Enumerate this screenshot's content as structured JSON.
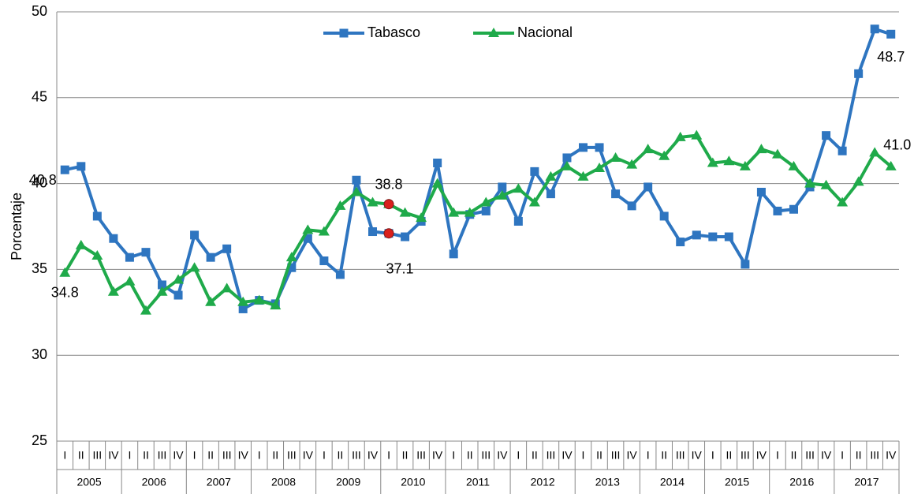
{
  "chart_data": {
    "type": "line",
    "y_label": "Porcentaje",
    "categories": [
      "I",
      "II",
      "III",
      "IV",
      "I",
      "II",
      "III",
      "IV",
      "I",
      "II",
      "III",
      "IV",
      "I",
      "II",
      "III",
      "IV",
      "I",
      "II",
      "III",
      "IV",
      "I",
      "II",
      "III",
      "IV",
      "I",
      "II",
      "III",
      "IV",
      "I",
      "II",
      "III",
      "IV",
      "I",
      "II",
      "III",
      "IV",
      "I",
      "II",
      "III",
      "IV",
      "I",
      "II",
      "III",
      "IV",
      "I",
      "II",
      "III",
      "IV",
      "I",
      "II",
      "III",
      "IV"
    ],
    "category_groups": [
      "2005",
      "2006",
      "2007",
      "2008",
      "2009",
      "2010",
      "2011",
      "2012",
      "2013",
      "2014",
      "2015",
      "2016",
      "2017"
    ],
    "series": [
      {
        "name": "Tabasco",
        "color": "#2e75c0",
        "marker": "square",
        "values": [
          40.8,
          41.0,
          38.1,
          36.8,
          35.7,
          36.0,
          34.1,
          33.5,
          37.0,
          35.7,
          36.2,
          32.7,
          33.2,
          33.0,
          35.1,
          36.8,
          35.5,
          34.7,
          40.2,
          37.2,
          37.1,
          36.9,
          37.8,
          41.2,
          35.9,
          38.2,
          38.4,
          39.8,
          37.8,
          40.7,
          39.4,
          41.5,
          42.1,
          42.1,
          39.4,
          38.7,
          39.8,
          38.1,
          36.6,
          37.0,
          36.9,
          36.9,
          35.3,
          39.5,
          38.4,
          38.5,
          39.8,
          42.8,
          41.9,
          46.4,
          49.0,
          48.7
        ],
        "value_labels": [
          "40.8",
          null,
          null,
          null,
          null,
          null,
          null,
          null,
          null,
          null,
          null,
          null,
          null,
          null,
          null,
          null,
          null,
          null,
          null,
          null,
          "37.1",
          null,
          null,
          null,
          null,
          null,
          null,
          null,
          null,
          null,
          null,
          null,
          null,
          null,
          null,
          null,
          null,
          null,
          null,
          null,
          null,
          null,
          null,
          null,
          null,
          null,
          null,
          null,
          null,
          null,
          null,
          "48.7"
        ]
      },
      {
        "name": "Nacional",
        "color": "#1faa4a",
        "marker": "triangle",
        "values": [
          34.8,
          36.4,
          35.8,
          33.7,
          34.3,
          32.6,
          33.7,
          34.4,
          35.1,
          33.1,
          33.9,
          33.1,
          33.2,
          32.9,
          35.7,
          37.3,
          37.2,
          38.7,
          39.5,
          38.9,
          38.8,
          38.3,
          38.0,
          40.0,
          38.3,
          38.3,
          38.9,
          39.3,
          39.7,
          38.9,
          40.4,
          41.0,
          40.4,
          40.9,
          41.5,
          41.1,
          42.0,
          41.6,
          42.7,
          42.8,
          41.2,
          41.3,
          41.0,
          42.0,
          41.7,
          41.0,
          40.0,
          39.9,
          38.9,
          40.1,
          41.8,
          41.0
        ],
        "value_labels": [
          "34.8",
          null,
          null,
          null,
          null,
          null,
          null,
          null,
          null,
          null,
          null,
          null,
          null,
          null,
          null,
          null,
          null,
          null,
          null,
          null,
          "38.8",
          null,
          null,
          null,
          null,
          null,
          null,
          null,
          null,
          null,
          null,
          null,
          null,
          null,
          null,
          null,
          null,
          null,
          null,
          null,
          null,
          null,
          null,
          null,
          null,
          null,
          null,
          null,
          null,
          null,
          null,
          "41.0"
        ]
      }
    ],
    "highlight": [
      20
    ],
    "ylim": [
      25,
      50
    ],
    "yticks": [
      25,
      30,
      35,
      40,
      45,
      50
    ],
    "grid": true,
    "legend": "top"
  }
}
